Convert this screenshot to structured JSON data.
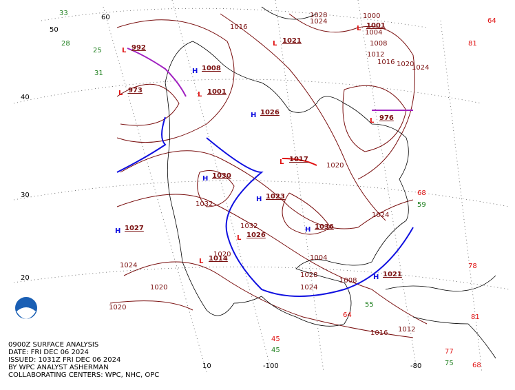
{
  "caption": [
    "0900Z SURFACE ANALYSIS",
    "DATE: FRI DEC 06 2024",
    "ISSUED: 1031Z FRI DEC 06 2024",
    "BY WPC ANALYST ASHERMAN",
    "COLLABORATING CENTERS: WPC, NHC, OPC"
  ],
  "latitude_labels": [
    "60",
    "50",
    "40",
    "30",
    "20"
  ],
  "longitude_labels": [
    "10",
    "-100",
    "-80"
  ],
  "pressure_centers": [
    {
      "symbol": "H",
      "pressure": 1027
    },
    {
      "symbol": "L",
      "pressure": 992
    },
    {
      "symbol": "L",
      "pressure": 973
    },
    {
      "symbol": "L",
      "pressure": 1021
    },
    {
      "symbol": "L",
      "pressure": 1001
    },
    {
      "symbol": "H",
      "pressure": 1008
    },
    {
      "symbol": "L",
      "pressure": 1001
    },
    {
      "symbol": "H",
      "pressure": 1026
    },
    {
      "symbol": "L",
      "pressure": 1017
    },
    {
      "symbol": "H",
      "pressure": 1023
    },
    {
      "symbol": "H",
      "pressure": 1036
    },
    {
      "symbol": "L",
      "pressure": 976
    },
    {
      "symbol": "H",
      "pressure": 1021
    },
    {
      "symbol": "L",
      "pressure": 1014
    },
    {
      "symbol": "H",
      "pressure": 1030
    },
    {
      "symbol": "L",
      "pressure": 1026
    }
  ],
  "isobar_labels": [
    1024,
    1020,
    1020,
    1032,
    1032,
    1020,
    1016,
    1012,
    1024,
    1004,
    1008,
    1020,
    1016,
    1028,
    1024,
    1000,
    1004,
    1008,
    1012,
    1016,
    1020,
    1024,
    1028,
    1024
  ],
  "station_values": [
    "64",
    "81",
    "78",
    "68",
    "59",
    "77",
    "75",
    "68",
    "81",
    "33",
    "28",
    "25",
    "31",
    "45",
    "45",
    "55",
    "64"
  ]
}
